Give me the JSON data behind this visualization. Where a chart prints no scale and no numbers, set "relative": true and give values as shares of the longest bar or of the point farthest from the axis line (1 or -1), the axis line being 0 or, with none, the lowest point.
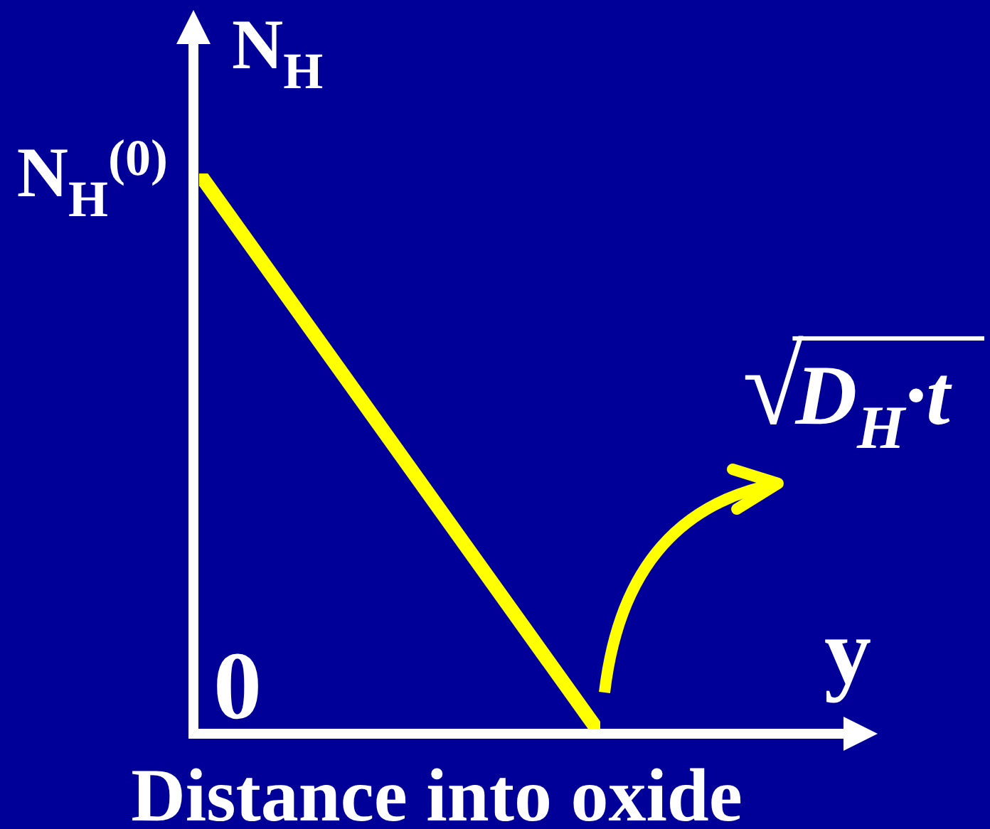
{
  "chart_data": {
    "type": "line",
    "xlabel": "y",
    "relative": true,
    "categories": [
      null,
      null
    ],
    "series": [
      {
        "color": "#ffff00",
        "values": [
          1,
          0
        ]
      }
    ],
    "annotations": [
      "N$_{H}$",
      "N$_{H}$$^{(0)}$",
      "√D$_{H}$·t",
      "0",
      "Distance into oxide"
    ]
  }
}
